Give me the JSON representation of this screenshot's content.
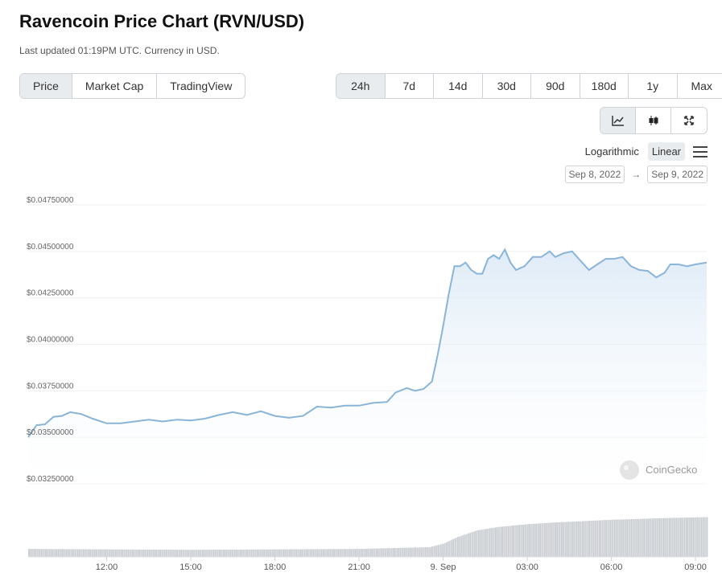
{
  "header": {
    "title": "Ravencoin Price Chart (RVN/USD)",
    "subtitle": "Last updated 01:19PM UTC. Currency in USD."
  },
  "view_tabs": [
    {
      "label": "Price",
      "active": true
    },
    {
      "label": "Market Cap",
      "active": false
    },
    {
      "label": "TradingView",
      "active": false
    }
  ],
  "range_tabs": [
    {
      "label": "24h",
      "active": true
    },
    {
      "label": "7d",
      "active": false
    },
    {
      "label": "14d",
      "active": false
    },
    {
      "label": "30d",
      "active": false
    },
    {
      "label": "90d",
      "active": false
    },
    {
      "label": "180d",
      "active": false
    },
    {
      "label": "1y",
      "active": false
    },
    {
      "label": "Max",
      "active": false
    }
  ],
  "chart_type_icons": [
    "line-chart-icon",
    "candlestick-icon",
    "fullscreen-icon"
  ],
  "scale": {
    "log_label": "Logarithmic",
    "linear_label": "Linear",
    "active": "Linear"
  },
  "date_range": {
    "from": "Sep 8, 2022",
    "to": "Sep 9, 2022",
    "separator": "→"
  },
  "watermark": "CoinGecko",
  "colors": {
    "line": "#8ab4d8",
    "fill_top": "#dbe9f6",
    "volume": "#c9ccd1",
    "accent_bg": "#e9ecef"
  },
  "chart_data": {
    "type": "area",
    "title": "",
    "xlabel": "",
    "ylabel": "",
    "ylim": [
      0.0325,
      0.0475
    ],
    "yticks": [
      "$0.04750000",
      "$0.04500000",
      "$0.04250000",
      "$0.04000000",
      "$0.03750000",
      "$0.03500000",
      "$0.03250000"
    ],
    "ytick_values": [
      0.0475,
      0.045,
      0.0425,
      0.04,
      0.0375,
      0.035,
      0.0325
    ],
    "xlim": [
      9.2,
      33.4
    ],
    "xticks": [
      {
        "label": "12:00",
        "h": 12
      },
      {
        "label": "15:00",
        "h": 15
      },
      {
        "label": "18:00",
        "h": 18
      },
      {
        "label": "21:00",
        "h": 21
      },
      {
        "label": "9. Sep",
        "h": 24
      },
      {
        "label": "03:00",
        "h": 27
      },
      {
        "label": "06:00",
        "h": 30
      },
      {
        "label": "09:00",
        "h": 33
      }
    ],
    "series": [
      {
        "points": [
          [
            9.2,
            0.035
          ],
          [
            9.5,
            0.03565
          ],
          [
            9.8,
            0.0357
          ],
          [
            10.1,
            0.0361
          ],
          [
            10.4,
            0.03615
          ],
          [
            10.7,
            0.03635
          ],
          [
            11.1,
            0.03625
          ],
          [
            11.5,
            0.036
          ],
          [
            12.0,
            0.03575
          ],
          [
            12.5,
            0.03575
          ],
          [
            13.0,
            0.03585
          ],
          [
            13.5,
            0.03595
          ],
          [
            14.0,
            0.03585
          ],
          [
            14.5,
            0.03595
          ],
          [
            15.0,
            0.0359
          ],
          [
            15.5,
            0.036
          ],
          [
            16.0,
            0.0362
          ],
          [
            16.5,
            0.03635
          ],
          [
            17.0,
            0.0362
          ],
          [
            17.5,
            0.0364
          ],
          [
            18.0,
            0.03615
          ],
          [
            18.5,
            0.03605
          ],
          [
            19.0,
            0.03615
          ],
          [
            19.5,
            0.03665
          ],
          [
            20.0,
            0.0366
          ],
          [
            20.5,
            0.0367
          ],
          [
            21.0,
            0.0367
          ],
          [
            21.5,
            0.03685
          ],
          [
            22.0,
            0.0369
          ],
          [
            22.3,
            0.0374
          ],
          [
            22.7,
            0.03765
          ],
          [
            23.0,
            0.0375
          ],
          [
            23.3,
            0.0376
          ],
          [
            23.6,
            0.038
          ],
          [
            23.8,
            0.0394
          ],
          [
            24.0,
            0.041
          ],
          [
            24.2,
            0.0427
          ],
          [
            24.4,
            0.0442
          ],
          [
            24.6,
            0.0442
          ],
          [
            24.8,
            0.0444
          ],
          [
            25.0,
            0.044
          ],
          [
            25.2,
            0.0438
          ],
          [
            25.4,
            0.0438
          ],
          [
            25.6,
            0.0446
          ],
          [
            25.8,
            0.0448
          ],
          [
            26.0,
            0.0446
          ],
          [
            26.2,
            0.0451
          ],
          [
            26.4,
            0.0444
          ],
          [
            26.6,
            0.044
          ],
          [
            26.9,
            0.0442
          ],
          [
            27.2,
            0.0447
          ],
          [
            27.5,
            0.0447
          ],
          [
            27.8,
            0.045
          ],
          [
            28.0,
            0.0447
          ],
          [
            28.3,
            0.0449
          ],
          [
            28.6,
            0.045
          ],
          [
            28.9,
            0.0445
          ],
          [
            29.2,
            0.044
          ],
          [
            29.5,
            0.0443
          ],
          [
            29.8,
            0.0446
          ],
          [
            30.1,
            0.0446
          ],
          [
            30.4,
            0.0447
          ],
          [
            30.7,
            0.0442
          ],
          [
            31.0,
            0.044
          ],
          [
            31.3,
            0.04395
          ],
          [
            31.6,
            0.0436
          ],
          [
            31.9,
            0.04385
          ],
          [
            32.1,
            0.0443
          ],
          [
            32.4,
            0.0443
          ],
          [
            32.7,
            0.0442
          ],
          [
            33.0,
            0.0443
          ],
          [
            33.4,
            0.0444
          ]
        ]
      }
    ],
    "volume": {
      "points": [
        [
          9.2,
          0.18
        ],
        [
          12.0,
          0.17
        ],
        [
          15.0,
          0.16
        ],
        [
          18.0,
          0.17
        ],
        [
          21.0,
          0.18
        ],
        [
          23.5,
          0.22
        ],
        [
          24.0,
          0.3
        ],
        [
          24.5,
          0.45
        ],
        [
          25.2,
          0.6
        ],
        [
          26.0,
          0.68
        ],
        [
          27.0,
          0.74
        ],
        [
          28.0,
          0.78
        ],
        [
          29.0,
          0.81
        ],
        [
          30.0,
          0.84
        ],
        [
          31.0,
          0.86
        ],
        [
          32.0,
          0.88
        ],
        [
          33.4,
          0.9
        ]
      ]
    },
    "grid": true,
    "legend": "none"
  }
}
